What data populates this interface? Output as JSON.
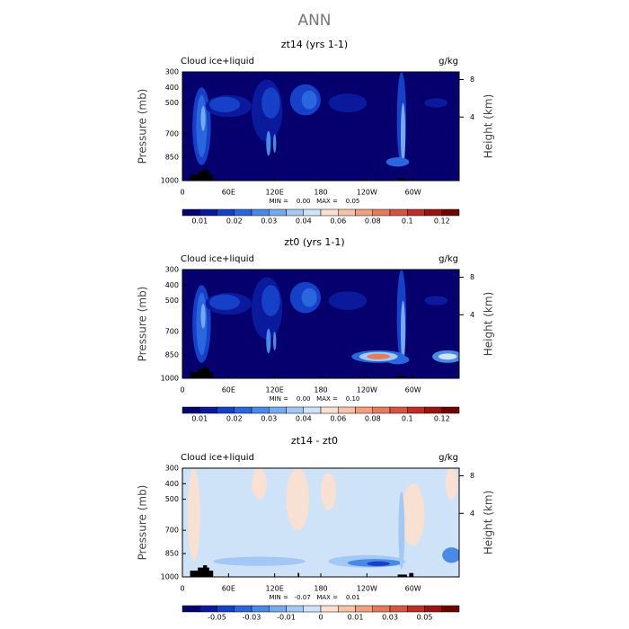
{
  "title": "ANN",
  "chart_data": [
    {
      "type": "contour",
      "title": "zt14 (yrs 1-1)",
      "field_label": "Cloud ice+liquid",
      "units": "g/kg",
      "ylabel": "Pressure (mb)",
      "y2label": "Height (km)",
      "stats": "MIN =    0.00   MAX =    0.05",
      "xlim": [
        0,
        360
      ],
      "xticks": [
        0,
        {
          "value": 60,
          "label": "60E"
        },
        {
          "value": 120,
          "label": "120E"
        },
        180,
        {
          "value": 240,
          "label": "120W"
        },
        {
          "value": 300,
          "label": "60W"
        }
      ],
      "ylim": [
        1000,
        300
      ],
      "yticks": [
        300,
        400,
        500,
        700,
        850,
        1000
      ],
      "y2ticks": [
        8,
        4
      ],
      "colorbar": {
        "colors": [
          "#06006e",
          "#0b1a9c",
          "#1640c8",
          "#2a66dd",
          "#4a8ae6",
          "#76aaee",
          "#a4c8f4",
          "#cfe3f8",
          "#f8e0d2",
          "#f5c3a8",
          "#f0a07e",
          "#e67b5c",
          "#d65440",
          "#bf2d28",
          "#9c1213",
          "#700000"
        ],
        "levels": [
          0.01,
          null,
          0.02,
          null,
          0.03,
          null,
          0.04,
          null,
          0.06,
          null,
          0.08,
          null,
          0.1,
          null,
          0.12
        ]
      }
    },
    {
      "type": "contour",
      "title": "zt0 (yrs 1-1)",
      "field_label": "Cloud ice+liquid",
      "units": "g/kg",
      "ylabel": "Pressure (mb)",
      "y2label": "Height (km)",
      "stats": "MIN =    0.00   MAX =    0.10",
      "xlim": [
        0,
        360
      ],
      "xticks": [
        0,
        {
          "value": 60,
          "label": "60E"
        },
        {
          "value": 120,
          "label": "120E"
        },
        180,
        {
          "value": 240,
          "label": "120W"
        },
        {
          "value": 300,
          "label": "60W"
        }
      ],
      "ylim": [
        1000,
        300
      ],
      "yticks": [
        300,
        400,
        500,
        700,
        850,
        1000
      ],
      "y2ticks": [
        8,
        4
      ],
      "colorbar": {
        "colors": [
          "#06006e",
          "#0b1a9c",
          "#1640c8",
          "#2a66dd",
          "#4a8ae6",
          "#76aaee",
          "#a4c8f4",
          "#cfe3f8",
          "#f8e0d2",
          "#f5c3a8",
          "#f0a07e",
          "#e67b5c",
          "#d65440",
          "#bf2d28",
          "#9c1213",
          "#700000"
        ],
        "levels": [
          0.01,
          null,
          0.02,
          null,
          0.03,
          null,
          0.04,
          null,
          0.06,
          null,
          0.08,
          null,
          0.1,
          null,
          0.12
        ]
      }
    },
    {
      "type": "contour",
      "title": "zt14 - zt0",
      "field_label": "Cloud ice+liquid",
      "units": "g/kg",
      "ylabel": "Pressure (mb)",
      "y2label": "Height (km)",
      "stats": "MIN =   -0.07   MAX =    0.01",
      "xlim": [
        0,
        360
      ],
      "xticks": [
        0,
        {
          "value": 60,
          "label": "60E"
        },
        {
          "value": 120,
          "label": "120E"
        },
        180,
        {
          "value": 240,
          "label": "120W"
        },
        {
          "value": 300,
          "label": "60W"
        }
      ],
      "ylim": [
        1000,
        300
      ],
      "yticks": [
        300,
        400,
        500,
        700,
        850,
        1000
      ],
      "y2ticks": [
        8,
        4
      ],
      "colorbar": {
        "colors": [
          "#06006e",
          "#0b1a9c",
          "#1640c8",
          "#2a66dd",
          "#4a8ae6",
          "#76aaee",
          "#a4c8f4",
          "#cfe3f8",
          "#f8e0d2",
          "#f5c3a8",
          "#f0a07e",
          "#e67b5c",
          "#d65440",
          "#bf2d28",
          "#9c1213",
          "#700000"
        ],
        "levels": [
          null,
          -0.05,
          null,
          -0.03,
          null,
          -0.01,
          null,
          0,
          null,
          0.01,
          null,
          0.03,
          null,
          0.05,
          null
        ]
      }
    }
  ]
}
